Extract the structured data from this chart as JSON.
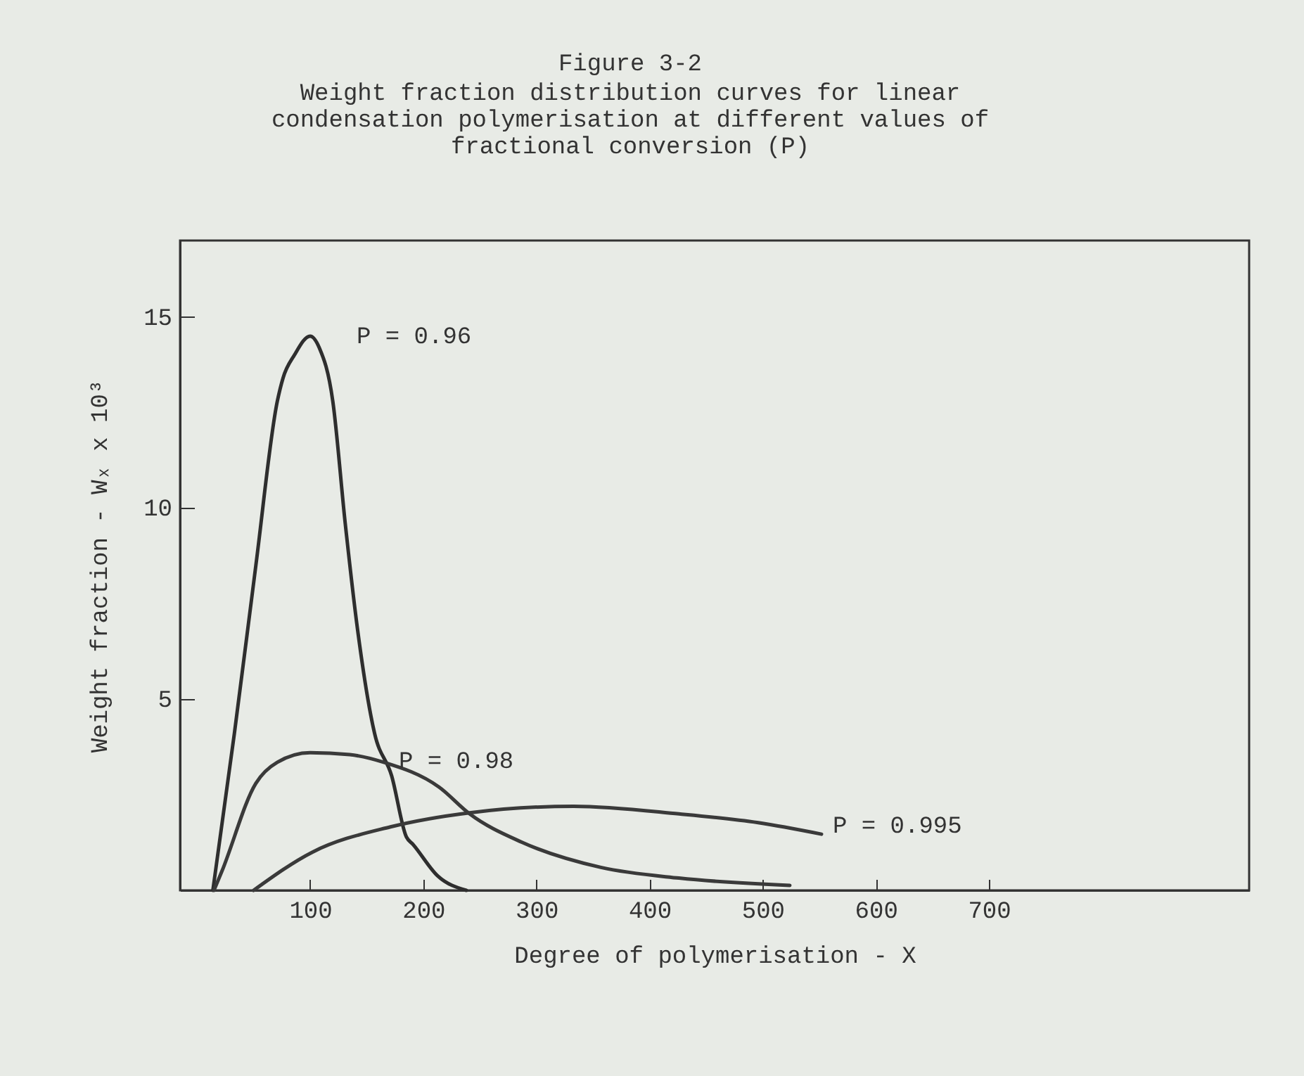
{
  "chart_data": {
    "type": "line",
    "title": "Figure 3-2",
    "subtitle": "Weight fraction distribution curves for linear condensation polymerisation at different values of fractional conversion (P)",
    "xlabel": "Degree of polymerisation - X",
    "ylabel": "Weight fraction - Wₓ x 10³",
    "xlim": [
      -15,
      930
    ],
    "ylim": [
      0,
      17
    ],
    "xticks": [
      100,
      200,
      300,
      400,
      500,
      600,
      700
    ],
    "yticks": [
      5,
      10,
      15
    ],
    "grid": false,
    "legend": false,
    "marker": "none",
    "line_style": "solid",
    "series": [
      {
        "name": "P = 0.96",
        "color": "#2e2e2e",
        "x": [
          14,
          33,
          52,
          71,
          76,
          86,
          100,
          108,
          120,
          131,
          142,
          157,
          172,
          185,
          191,
          213,
          238
        ],
        "values": [
          0,
          4.1,
          8.5,
          12.8,
          13.4,
          14.0,
          14.5,
          14.2,
          12.8,
          9.6,
          6.8,
          4.1,
          3.0,
          1.4,
          1.2,
          0.37,
          0
        ]
      },
      {
        "name": "P = 0.98",
        "color": "#3a3a3a",
        "x": [
          15,
          22,
          52,
          71,
          100,
          135,
          165,
          214,
          241,
          287,
          357,
          426,
          524
        ],
        "values": [
          0,
          0.5,
          2.8,
          3.35,
          3.6,
          3.55,
          3.35,
          2.7,
          2.0,
          1.26,
          0.6,
          0.32,
          0.13
        ]
      },
      {
        "name": "P = 0.995",
        "color": "#3a3a3a",
        "x": [
          50,
          102,
          171,
          241,
          333,
          426,
          496,
          552
        ],
        "values": [
          0,
          1.0,
          1.66,
          2.03,
          2.2,
          2.0,
          1.77,
          1.47
        ]
      }
    ]
  }
}
